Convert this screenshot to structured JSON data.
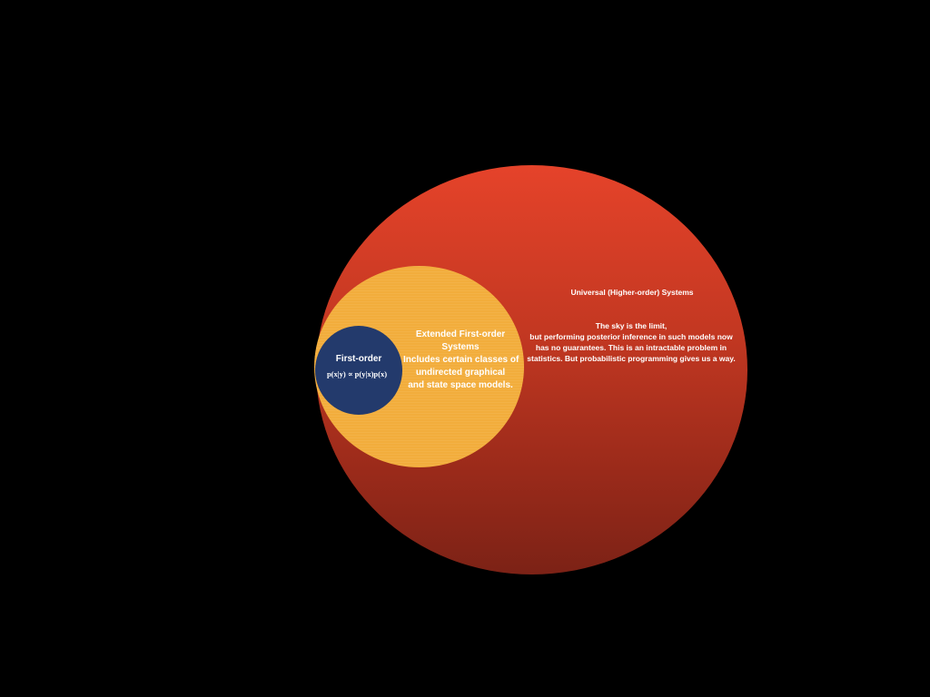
{
  "diagram": {
    "outer": {
      "title": "Universal (Higher-order) Systems",
      "body_lines": [
        "The sky is the limit,",
        "but performing posterior inference in such models now",
        "has no guarantees. This is an intractable problem in",
        "statistics.  But probabilistic programming gives us a way."
      ]
    },
    "middle": {
      "title": "Extended First-order Systems",
      "body_lines": [
        "Includes certain classes of",
        "undirected graphical",
        "and state space models."
      ]
    },
    "inner": {
      "title": "First-order",
      "formula": "p(x|y) ∝ p(y|x)p(x)"
    }
  },
  "colors": {
    "background": "#000000",
    "outer_top": "#e5432a",
    "outer_bottom": "#7c2216",
    "middle": "#f2ad3c",
    "inner": "#233a6c",
    "text": "#ffffff"
  }
}
